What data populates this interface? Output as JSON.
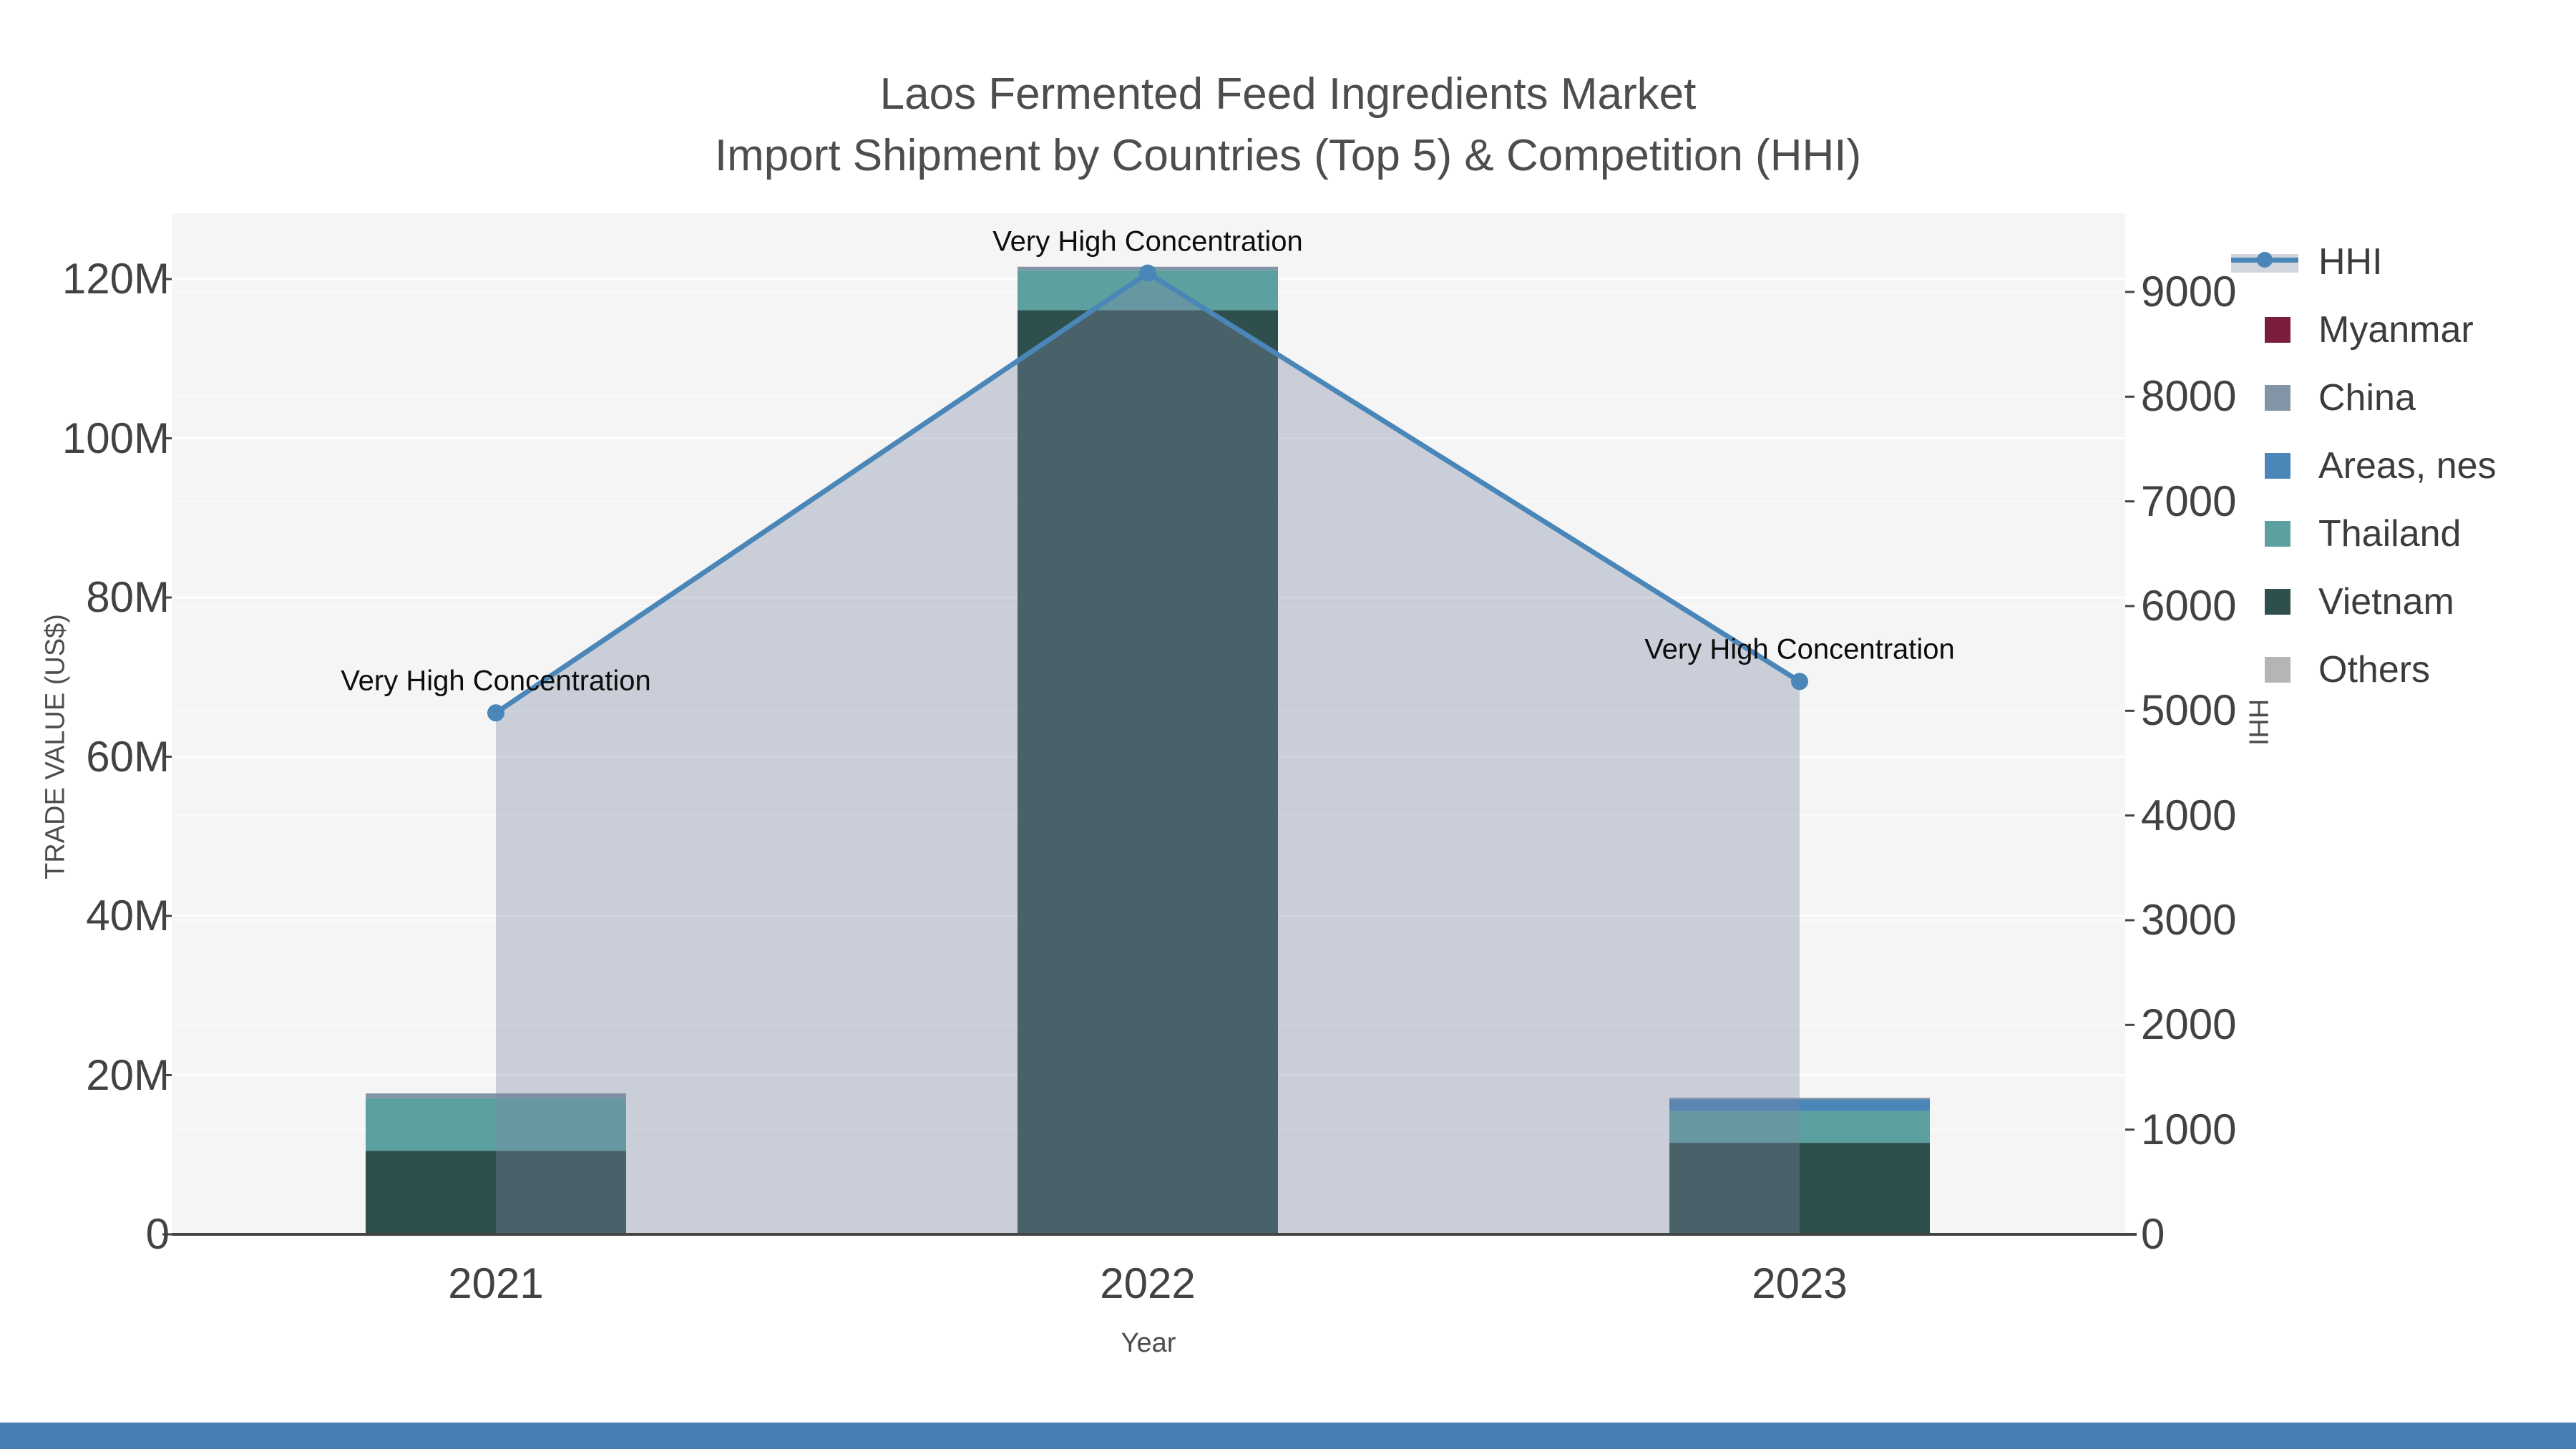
{
  "title": {
    "line1": "Laos Fermented Feed Ingredients Market",
    "line2": "Import Shipment by Countries (Top 5) & Competition (HHI)"
  },
  "axes": {
    "x_title": "Year",
    "y_left_title": "TRADE VALUE (US$)",
    "y_right_title": "HHI",
    "y_left_ticks": [
      {
        "label": "0",
        "value": 0
      },
      {
        "label": "20M",
        "value": 20
      },
      {
        "label": "40M",
        "value": 40
      },
      {
        "label": "60M",
        "value": 60
      },
      {
        "label": "80M",
        "value": 80
      },
      {
        "label": "100M",
        "value": 100
      },
      {
        "label": "120M",
        "value": 120
      }
    ],
    "y_right_ticks": [
      {
        "label": "0",
        "value": 0
      },
      {
        "label": "1000",
        "value": 1000
      },
      {
        "label": "2000",
        "value": 2000
      },
      {
        "label": "3000",
        "value": 3000
      },
      {
        "label": "4000",
        "value": 4000
      },
      {
        "label": "5000",
        "value": 5000
      },
      {
        "label": "6000",
        "value": 6000
      },
      {
        "label": "7000",
        "value": 7000
      },
      {
        "label": "8000",
        "value": 8000
      },
      {
        "label": "9000",
        "value": 9000
      }
    ]
  },
  "legend": {
    "items": [
      {
        "label": "HHI",
        "symbol": "line",
        "color": "#4a86b8"
      },
      {
        "label": "Myanmar",
        "symbol": "square",
        "color": "#7b1e3e"
      },
      {
        "label": "China",
        "symbol": "square",
        "color": "#8294a6"
      },
      {
        "label": "Areas, nes",
        "symbol": "square",
        "color": "#4a86b8"
      },
      {
        "label": "Thailand",
        "symbol": "square",
        "color": "#5ca1a0"
      },
      {
        "label": "Vietnam",
        "symbol": "square",
        "color": "#2e4f4c"
      },
      {
        "label": "Others",
        "symbol": "square",
        "color": "#b5b5b5"
      }
    ]
  },
  "annotations": [
    {
      "text": "Very High Concentration",
      "year": "2021"
    },
    {
      "text": "Very High Concentration",
      "year": "2022"
    },
    {
      "text": "Very High Concentration",
      "year": "2023"
    }
  ],
  "chart_data": {
    "type": "bar",
    "subtype": "stacked-bars-with-dual-axis-line",
    "categories": [
      "2021",
      "2022",
      "2023"
    ],
    "bar_unit": "million US$",
    "series": [
      {
        "name": "Myanmar",
        "color": "#7b1e3e",
        "values": [
          0,
          0,
          0
        ]
      },
      {
        "name": "China",
        "color": "#8294a6",
        "values": [
          0.6,
          0.45,
          0.2
        ]
      },
      {
        "name": "Areas, nes",
        "color": "#4a86b8",
        "values": [
          0,
          0,
          1.45
        ]
      },
      {
        "name": "Thailand",
        "color": "#5ca1a0",
        "values": [
          6.6,
          5.0,
          4.0
        ]
      },
      {
        "name": "Vietnam",
        "color": "#2e4f4c",
        "values": [
          10.5,
          116.1,
          11.5
        ]
      },
      {
        "name": "Others",
        "color": "#b5b5b5",
        "values": [
          0,
          0,
          0
        ]
      }
    ],
    "stack_order_bottom_to_top": [
      "Vietnam",
      "Thailand",
      "Areas, nes",
      "China",
      "Myanmar",
      "Others"
    ],
    "line_series": {
      "name": "HHI",
      "color": "#4a86b8",
      "area_fill": "rgba(124,134,162,0.35)",
      "values": [
        4980,
        9180,
        5280
      ]
    },
    "title": "Laos Fermented Feed Ingredients Market — Import Shipment by Countries (Top 5) & Competition (HHI)",
    "xlabel": "Year",
    "ylabel_left": "TRADE VALUE (US$)",
    "ylabel_right": "HHI",
    "ylim_left": [
      0,
      128.3
    ],
    "ylim_right": [
      0,
      9755
    ],
    "grid": true,
    "legend_position": "right",
    "plot_bg": "#f5f5f5",
    "axis_color": "#444444"
  },
  "footer": {
    "accent_color": "#4a7fb5"
  }
}
